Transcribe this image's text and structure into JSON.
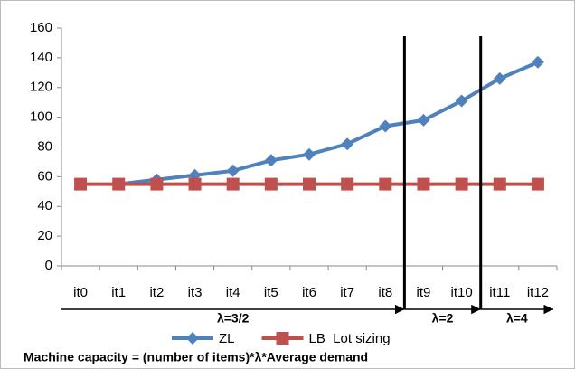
{
  "chart_data": {
    "type": "line",
    "categories": [
      "it0",
      "it1",
      "it2",
      "it3",
      "it4",
      "it5",
      "it6",
      "it7",
      "it8",
      "it9",
      "it10",
      "it11",
      "it12"
    ],
    "series": [
      {
        "name": "ZL",
        "color": "#4f81bd",
        "marker": "diamond",
        "values": [
          null,
          55,
          58,
          61,
          64,
          71,
          75,
          82,
          94,
          98,
          111,
          126,
          137
        ]
      },
      {
        "name": "LB_Lot sizing",
        "color": "#c0504d",
        "marker": "square",
        "values": [
          55,
          55,
          55,
          55,
          55,
          55,
          55,
          55,
          55,
          55,
          55,
          55,
          55
        ]
      }
    ],
    "ylim": [
      0,
      160
    ],
    "yticks": [
      0,
      20,
      40,
      60,
      80,
      100,
      120,
      140,
      160
    ],
    "grid": false,
    "annotations": [
      "λ=3/2",
      "λ=2",
      "λ=4"
    ],
    "footnote": "Machine capacity = (number of items)*λ*Average demand"
  }
}
